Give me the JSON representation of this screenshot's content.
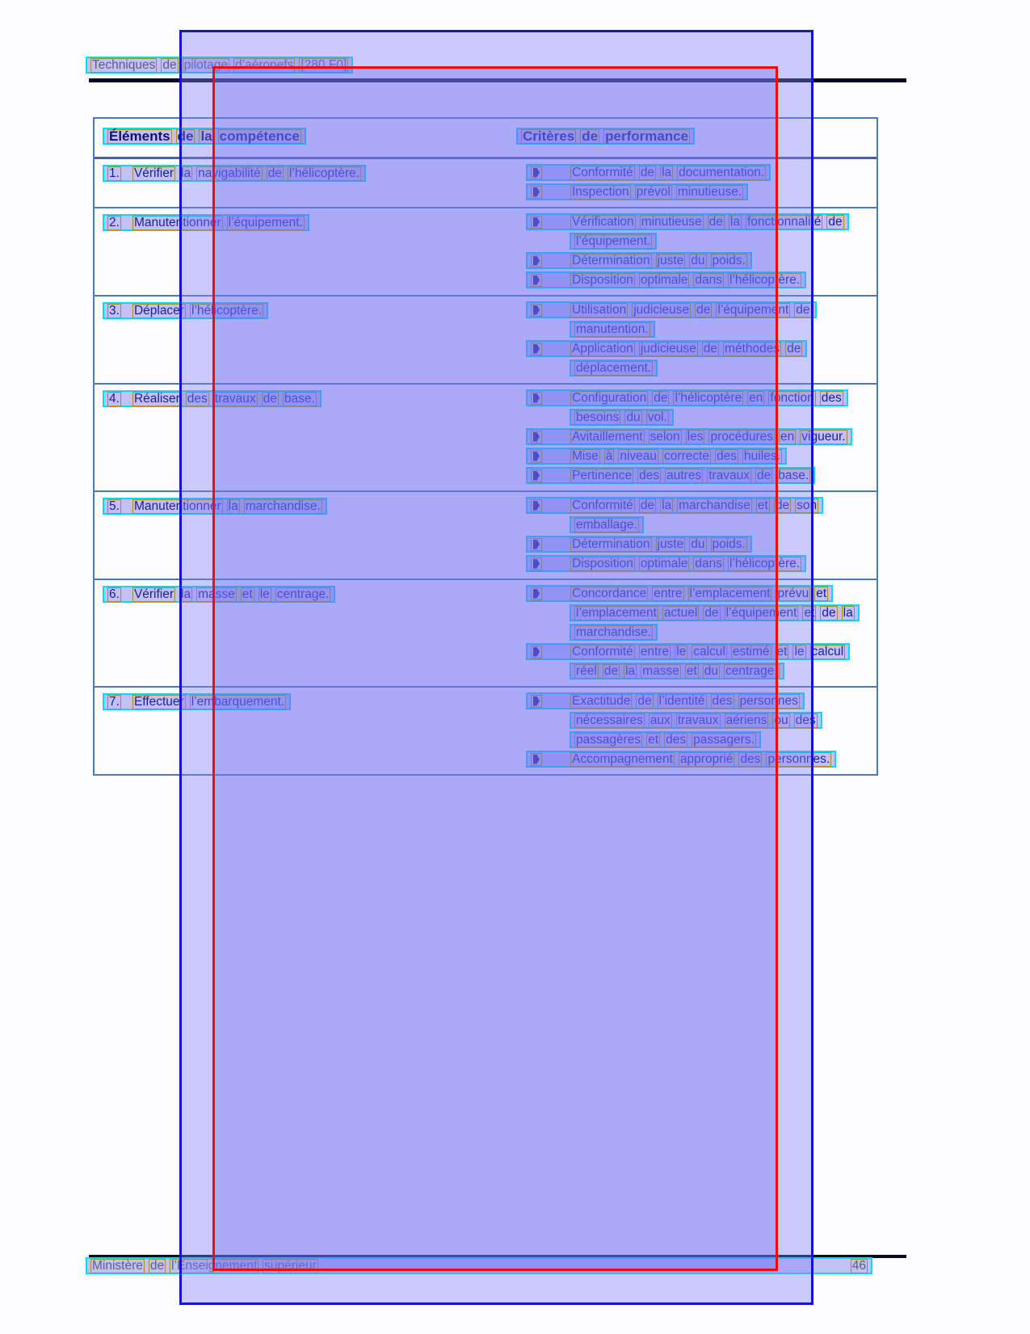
{
  "header": {
    "title_words": "Techniques de pilotage d’aéronefs [280.F0]"
  },
  "table": {
    "col1_header": "Éléments de la compétence",
    "col2_header": "Critères de performance",
    "rows": [
      {
        "number": "1.",
        "label": "Vérifier la navigabilité de l’hélicoptère.",
        "criteria": [
          {
            "lines": [
              "Conformité de la documentation."
            ]
          },
          {
            "lines": [
              "Inspection prévol minutieuse."
            ]
          }
        ]
      },
      {
        "number": "2.",
        "label": "Manutentionner l’équipement.",
        "criteria": [
          {
            "lines": [
              "Vérification minutieuse de la fonctionnalité de",
              "l’équipement."
            ]
          },
          {
            "lines": [
              "Détermination juste du poids."
            ]
          },
          {
            "lines": [
              "Disposition optimale dans l’hélicoptère."
            ]
          }
        ]
      },
      {
        "number": "3.",
        "label": "Déplacer l’hélicoptère.",
        "criteria": [
          {
            "lines": [
              "Utilisation judicieuse de l’équipement de",
              "manutention."
            ]
          },
          {
            "lines": [
              "Application judicieuse de méthodes de",
              "déplacement."
            ]
          }
        ]
      },
      {
        "number": "4.",
        "label": "Réaliser des travaux de base.",
        "criteria": [
          {
            "lines": [
              "Configuration de l’hélicoptère en fonction des",
              "besoins du vol."
            ]
          },
          {
            "lines": [
              "Avitaillement selon les procédures en vigueur."
            ]
          },
          {
            "lines": [
              "Mise à niveau correcte des huiles."
            ]
          },
          {
            "lines": [
              "Pertinence des autres travaux de base."
            ]
          }
        ]
      },
      {
        "number": "5.",
        "label": "Manutentionner la marchandise.",
        "criteria": [
          {
            "lines": [
              "Conformité de la marchandise et de son",
              "emballage."
            ]
          },
          {
            "lines": [
              "Détermination juste du poids."
            ]
          },
          {
            "lines": [
              "Disposition optimale dans l’hélicoptère."
            ]
          }
        ]
      },
      {
        "number": "6.",
        "label": "Vérifier la masse et le centrage.",
        "criteria": [
          {
            "lines": [
              "Concordance entre l’emplacement prévu et",
              "l’emplacement actuel de l’équipement et de la",
              "marchandise."
            ]
          },
          {
            "lines": [
              "Conformité entre le calcul estimé et le calcul",
              "réel de la masse et du centrage."
            ]
          }
        ]
      },
      {
        "number": "7.",
        "label": "Effectuer l’embarquement.",
        "criteria": [
          {
            "lines": [
              "Exactitude de l’identité des personnes",
              "nécessaires aux travaux aériens ou des",
              "passagères et des passagers."
            ]
          },
          {
            "lines": [
              "Accompagnement approprié des personnes."
            ]
          }
        ]
      }
    ]
  },
  "footer": {
    "left_text": "Ministère de l’Enseignement supérieur",
    "page_number": "46"
  },
  "annotations": {
    "colors": {
      "line_box_border": "#00dcff",
      "word_box_border": "#ad8b1e",
      "inner_rect_border": "#f20a0a",
      "outer_rect_border": "#1414cd",
      "table_border": "#4d7ab2",
      "text": "#1e1e96"
    }
  }
}
